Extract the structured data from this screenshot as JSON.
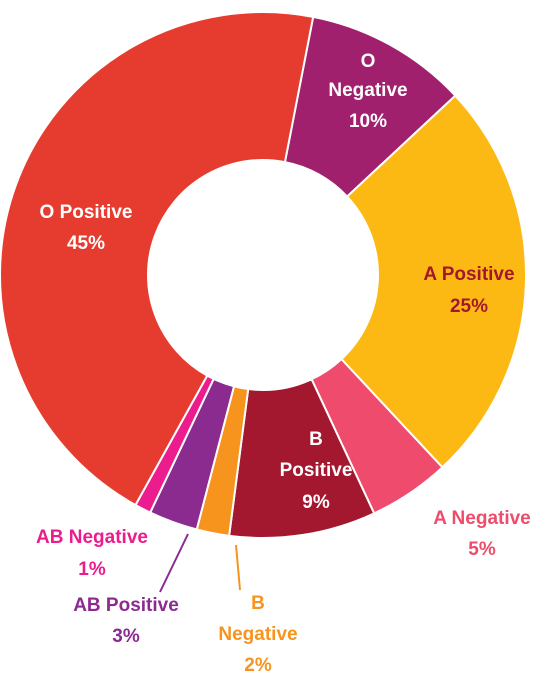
{
  "chart_data": {
    "type": "donut",
    "categories": [
      "O Negative",
      "A Positive",
      "A Negative",
      "B Positive",
      "B Negative",
      "AB Positive",
      "AB Negative",
      "O Positive"
    ],
    "values": [
      10,
      25,
      5,
      9,
      2,
      3,
      1,
      45
    ],
    "value_labels": [
      "10%",
      "25%",
      "5%",
      "9%",
      "2%",
      "3%",
      "1%",
      "45%"
    ],
    "colors": [
      "#a0206e",
      "#fdb913",
      "#ef4b6c",
      "#a3182e",
      "#f7941d",
      "#8b2a8f",
      "#ec1c8e",
      "#e63c2f"
    ]
  }
}
